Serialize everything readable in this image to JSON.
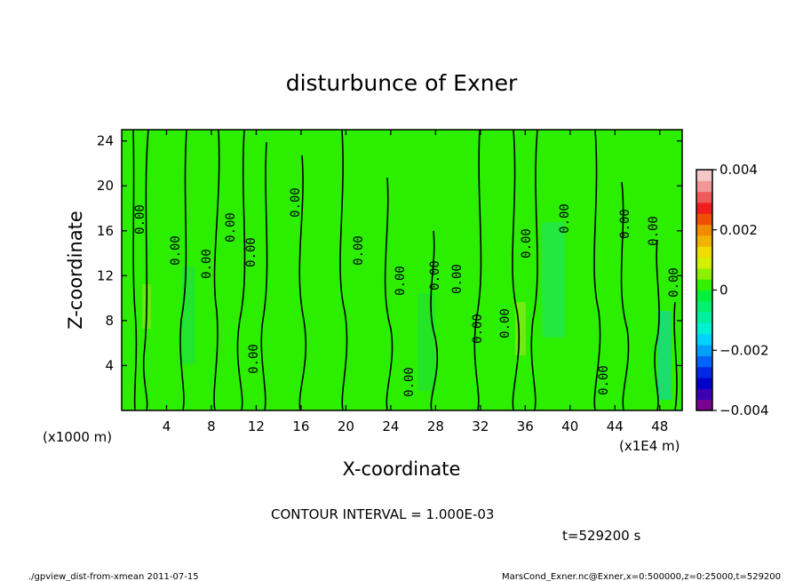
{
  "chart_data": {
    "type": "heatmap",
    "title": "disturbunce of Exner",
    "xlabel": "X-coordinate",
    "ylabel": "Z-coordinate",
    "x_unit": "(x1E4 m)",
    "y_unit": "(x1000 m)",
    "xlim": [
      0,
      50
    ],
    "ylim": [
      0,
      25
    ],
    "x_ticks": [
      4,
      8,
      12,
      16,
      20,
      24,
      28,
      32,
      36,
      40,
      44,
      48
    ],
    "y_ticks": [
      4,
      8,
      12,
      16,
      20,
      24
    ],
    "colorbar": {
      "min": -0.004,
      "max": 0.004,
      "tick_labels": [
        "0.004",
        "0.002",
        "0",
        "−0.002",
        "−0.004"
      ],
      "tick_values": [
        0.004,
        0.002,
        0,
        -0.002,
        -0.004
      ],
      "colors": [
        "#7a0090",
        "#3c00b4",
        "#0000c8",
        "#0028e6",
        "#0064ff",
        "#00a0ff",
        "#00d2ff",
        "#00f0d2",
        "#00f0a0",
        "#00f070",
        "#00f03c",
        "#32f000",
        "#8cf000",
        "#d2f000",
        "#f0dc00",
        "#f0b400",
        "#f08c00",
        "#f05000",
        "#f01e1e",
        "#f05a5a",
        "#f09696",
        "#f5c8c8"
      ]
    },
    "contour_label": "0.00",
    "contour_interval_text": "CONTOUR INTERVAL = 1.000E-03",
    "background_value": 0
  },
  "footer": {
    "time": "t=529200 s",
    "left_note": "./gpview_dist-from-xmean  2011-07-15",
    "right_note": "MarsCond_Exner.nc@Exner,x=0:500000,z=0:25000,t=529200"
  }
}
